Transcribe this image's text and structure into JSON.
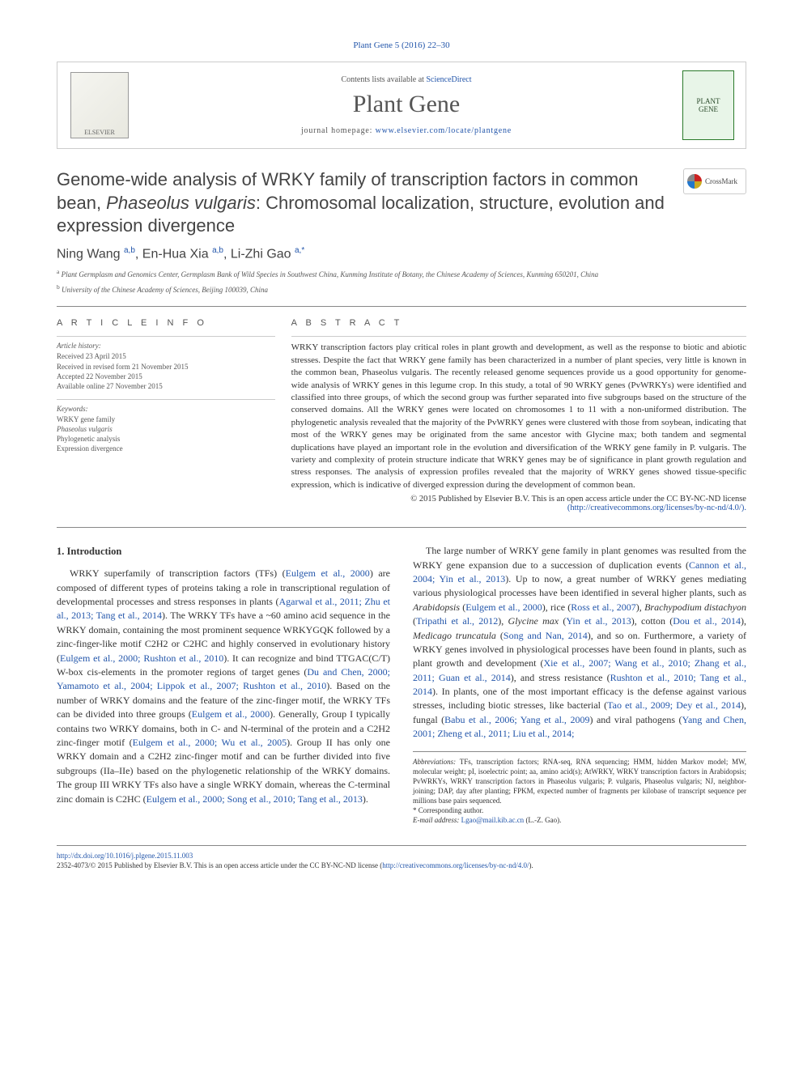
{
  "journal_ref": "Plant Gene 5 (2016) 22–30",
  "header": {
    "contents_prefix": "Contents lists available at ",
    "contents_link": "ScienceDirect",
    "journal_title": "Plant Gene",
    "homepage_prefix": "journal homepage: ",
    "homepage_link": "www.elsevier.com/locate/plantgene",
    "left_logo_label": "ELSEVIER",
    "right_logo_line1": "PLANT",
    "right_logo_line2": "GENE"
  },
  "crossmark": "CrossMark",
  "title_part1": "Genome-wide analysis of WRKY family of transcription factors in common bean, ",
  "title_italic": "Phaseolus vulgaris",
  "title_part2": ": Chromosomal localization, structure, evolution and expression divergence",
  "authors": {
    "a1_name": "Ning Wang ",
    "a1_aff": "a,b",
    "a2_name": ", En-Hua Xia ",
    "a2_aff": "a,b",
    "a3_name": ", Li-Zhi Gao ",
    "a3_aff": "a,*"
  },
  "affiliations": {
    "aff_a_sup": "a",
    "aff_a": " Plant Germplasm and Genomics Center, Germplasm Bank of Wild Species in Southwest China, Kunming Institute of Botany, the Chinese Academy of Sciences, Kunming 650201, China",
    "aff_b_sup": "b",
    "aff_b": " University of the Chinese Academy of Sciences, Beijing 100039, China"
  },
  "info_headings": {
    "article_info": "A R T I C L E   I N F O",
    "abstract": "A B S T R A C T"
  },
  "history": {
    "label": "Article history:",
    "received": "Received 23 April 2015",
    "revised": "Received in revised form 21 November 2015",
    "accepted": "Accepted 22 November 2015",
    "online": "Available online 27 November 2015"
  },
  "keywords": {
    "label": "Keywords:",
    "k1": "WRKY gene family",
    "k2": "Phaseolus vulgaris",
    "k3": "Phylogenetic analysis",
    "k4": "Expression divergence"
  },
  "abstract_text": "WRKY transcription factors play critical roles in plant growth and development, as well as the response to biotic and abiotic stresses. Despite the fact that WRKY gene family has been characterized in a number of plant species, very little is known in the common bean, Phaseolus vulgaris. The recently released genome sequences provide us a good opportunity for genome-wide analysis of WRKY genes in this legume crop. In this study, a total of 90 WRKY genes (PvWRKYs) were identified and classified into three groups, of which the second group was further separated into five subgroups based on the structure of the conserved domains. All the WRKY genes were located on chromosomes 1 to 11 with a non-uniformed distribution. The phylogenetic analysis revealed that the majority of the PvWRKY genes were clustered with those from soybean, indicating that most of the WRKY genes may be originated from the same ancestor with Glycine max; both tandem and segmental duplications have played an important role in the evolution and diversification of the WRKY gene family in P. vulgaris. The variety and complexity of protein structure indicate that WRKY genes may be of significance in plant growth regulation and stress responses. The analysis of expression profiles revealed that the majority of WRKY genes showed tissue-specific expression, which is indicative of diverged expression during the development of common bean.",
  "copyright": "© 2015 Published by Elsevier B.V. This is an open access article under the CC BY-NC-ND license",
  "license_url": "(http://creativecommons.org/licenses/by-nc-nd/4.0/).",
  "body": {
    "heading": "1. Introduction",
    "para1_a": "WRKY superfamily of transcription factors (TFs) (",
    "para1_link1": "Eulgem et al., 2000",
    "para1_b": ") are composed of different types of proteins taking a role in transcriptional regulation of developmental processes and stress responses in plants (",
    "para1_link2": "Agarwal et al., 2011; Zhu et al., 2013; Tang et al., 2014",
    "para1_c": "). The WRKY TFs have a ~60 amino acid sequence in the WRKY domain, containing the most prominent sequence WRKYGQK followed by a zinc-finger-like motif C2H2 or C2HC and highly conserved in evolutionary history (",
    "para1_link3": "Eulgem et al., 2000; Rushton et al., 2010",
    "para1_d": "). It can recognize and bind TTGAC(C/T) W-box cis-elements in the promoter regions of target genes (",
    "para1_link4": "Du and Chen, 2000; Yamamoto et al., 2004; Lippok et al., 2007; Rushton et al., 2010",
    "para1_e": "). Based on the number of WRKY domains and the feature of the zinc-finger motif, the WRKY TFs can be divided into three groups (",
    "para1_link5": "Eulgem et al., 2000",
    "para1_f": "). Generally, Group I typically ",
    "para1_g": "contains two WRKY domains, both in C- and N-terminal of the protein and a C2H2 zinc-finger motif (",
    "para1_link6": "Eulgem et al., 2000; Wu et al., 2005",
    "para1_h": "). Group II has only one WRKY domain and a C2H2 zinc-finger motif and can be further divided into five subgroups (IIa–IIe) based on the phylogenetic relationship of the WRKY domains. The group III WRKY TFs also have a single WRKY domain, whereas the C-terminal zinc domain is C2HC (",
    "para1_link7": "Eulgem et al., 2000; Song et al., 2010; Tang et al., 2013",
    "para1_i": ").",
    "para2_a": "The large number of WRKY gene family in plant genomes was resulted from the WRKY gene expansion due to a succession of duplication events (",
    "para2_link1": "Cannon et al., 2004; Yin et al., 2013",
    "para2_b": "). Up to now, a great number of WRKY genes mediating various physiological processes have been identified in several higher plants, such as ",
    "para2_italic1": "Arabidopsis",
    "para2_c": " (",
    "para2_link2": "Eulgem et al., 2000",
    "para2_d": "), rice (",
    "para2_link3": "Ross et al., 2007",
    "para2_e": "), ",
    "para2_italic2": "Brachypodium distachyon",
    "para2_f": " (",
    "para2_link4": "Tripathi et al., 2012",
    "para2_g": "), ",
    "para2_italic3": "Glycine max",
    "para2_h": " (",
    "para2_link5": "Yin et al., 2013",
    "para2_i": "), cotton (",
    "para2_link6": "Dou et al., 2014",
    "para2_j": "), ",
    "para2_italic4": "Medicago truncatula",
    "para2_k": " (",
    "para2_link7": "Song and Nan, 2014",
    "para2_l": "), and so on. Furthermore, a variety of WRKY genes involved in physiological processes have been found in plants, such as plant growth and development (",
    "para2_link8": "Xie et al., 2007; Wang et al., 2010; Zhang et al., 2011; Guan et al., 2014",
    "para2_m": "), and stress resistance (",
    "para2_link9": "Rushton et al., 2010; Tang et al., 2014",
    "para2_n": "). In plants, one of the most important efficacy is the defense against various stresses, including biotic stresses, like bacterial (",
    "para2_link10": "Tao et al., 2009; Dey et al., 2014",
    "para2_o": "), fungal (",
    "para2_link11": "Babu et al., 2006; Yang et al., 2009",
    "para2_p": ") and viral pathogens (",
    "para2_link12": "Yang and Chen, 2001; Zheng et al., 2011; Liu et al., 2014;"
  },
  "footnotes": {
    "abbr_label": "Abbreviations:",
    "abbr_text": " TFs, transcription factors; RNA-seq, RNA sequencing; HMM, hidden Markov model; MW, molecular weight; pI, isoelectric point; aa, amino acid(s); AtWRKY, WRKY transcription factors in Arabidopsis; PvWRKYs, WRKY transcription factors in Phaseolus vulgaris; P. vulgaris, Phaseolus vulgaris; NJ, neighbor-joining; DAP, day after planting; FPKM, expected number of fragments per kilobase of transcript sequence per millions base pairs sequenced.",
    "corr_label": "* Corresponding author.",
    "email_label": "E-mail address: ",
    "email": "Lgao@mail.kib.ac.cn",
    "email_suffix": " (L.-Z. Gao)."
  },
  "footer": {
    "doi": "http://dx.doi.org/10.1016/j.plgene.2015.11.003",
    "issn_line": "2352-4073/© 2015 Published by Elsevier B.V. This is an open access article under the CC BY-NC-ND license (",
    "license": "http://creativecommons.org/licenses/by-nc-nd/4.0/",
    "close": ")."
  },
  "colors": {
    "link": "#2255aa",
    "text": "#333333",
    "muted": "#555555",
    "border": "#888888",
    "light_border": "#cccccc"
  }
}
